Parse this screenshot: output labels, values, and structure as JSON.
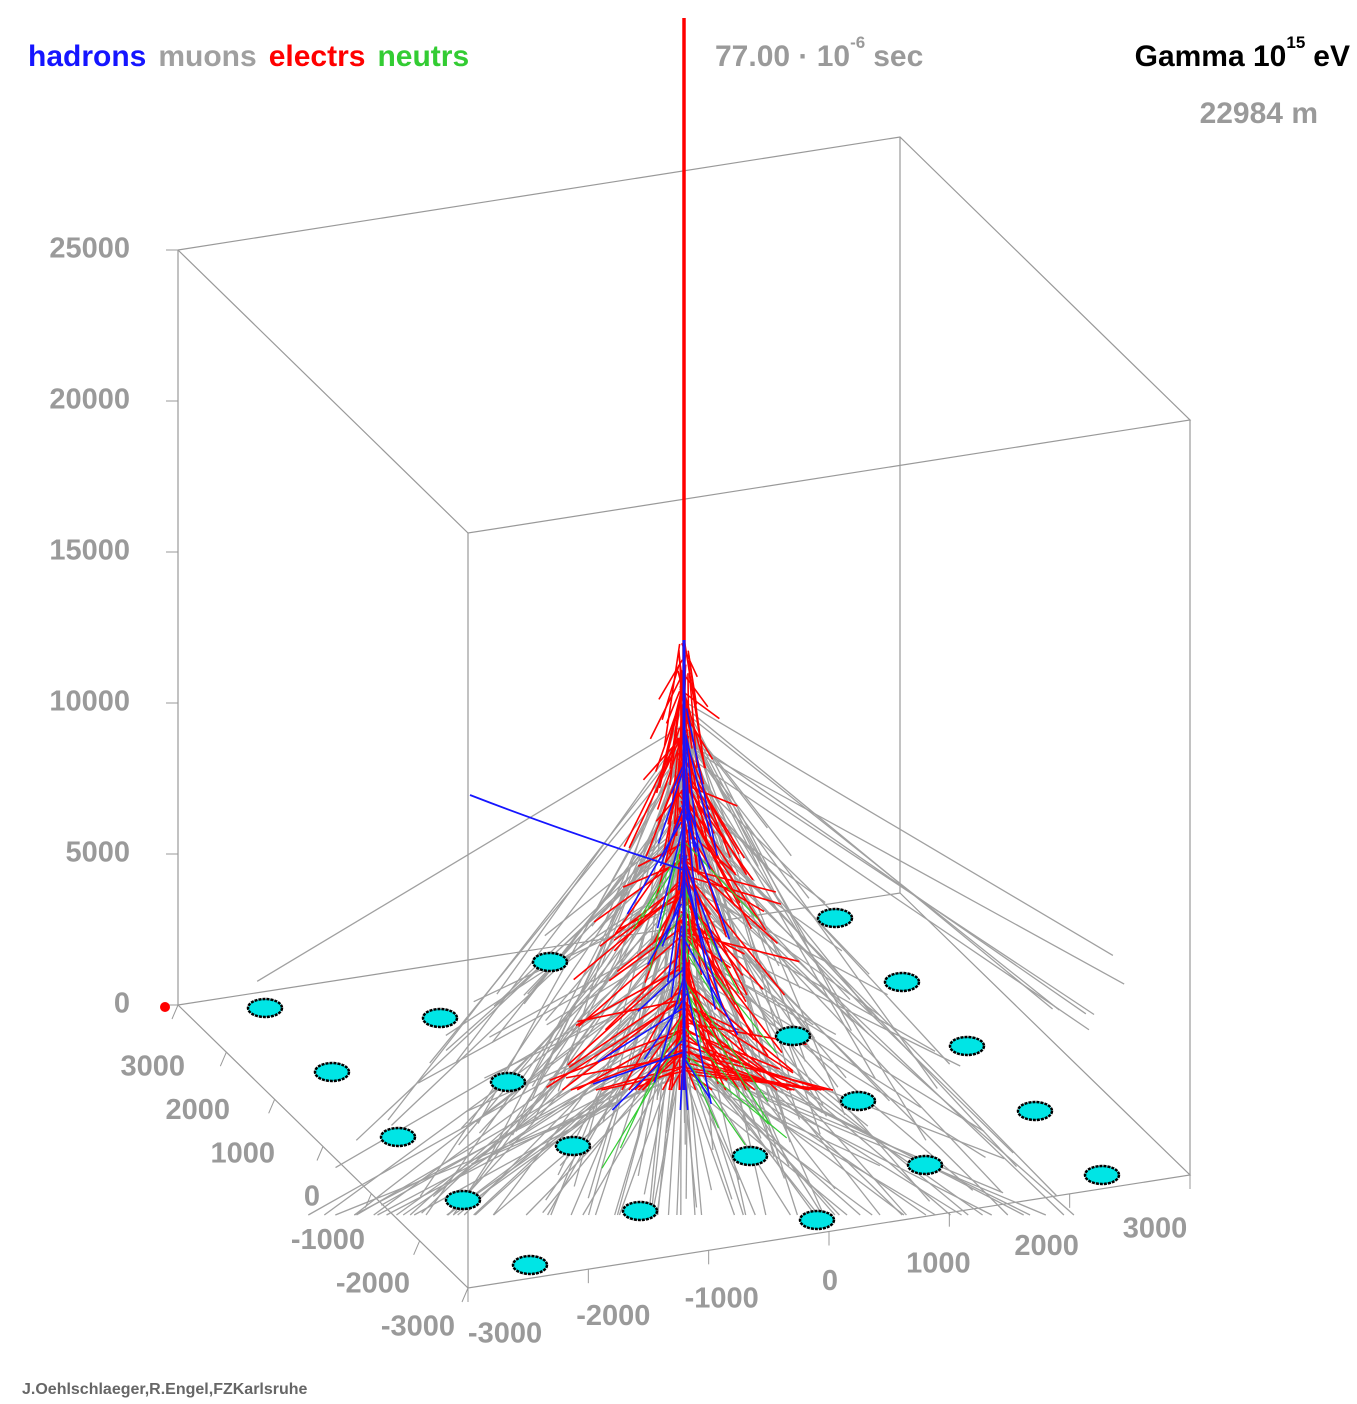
{
  "legend": [
    {
      "label": "hadrons",
      "color": "#1515ff"
    },
    {
      "label": "muons",
      "color": "#a0a0a0"
    },
    {
      "label": "electrs",
      "color": "#ff0000"
    },
    {
      "label": "neutrs",
      "color": "#33cc33"
    }
  ],
  "time": {
    "value": "77.00 · 10",
    "exponent": "-6",
    "unit": "sec"
  },
  "title": {
    "text": "Gamma 10",
    "exponent": "15",
    "unit": "eV"
  },
  "altitude": "22984 m",
  "z_ticks": [
    0,
    5000,
    10000,
    15000,
    20000,
    25000
  ],
  "y_ticks": [
    3000,
    2000,
    1000,
    0,
    -1000,
    -2000,
    -3000
  ],
  "x_ticks": [
    -3000,
    -2000,
    -1000,
    0,
    1000,
    2000,
    3000
  ],
  "credit": "J.Oehlschlaeger,R.Engel,FZKarlsruhe"
}
